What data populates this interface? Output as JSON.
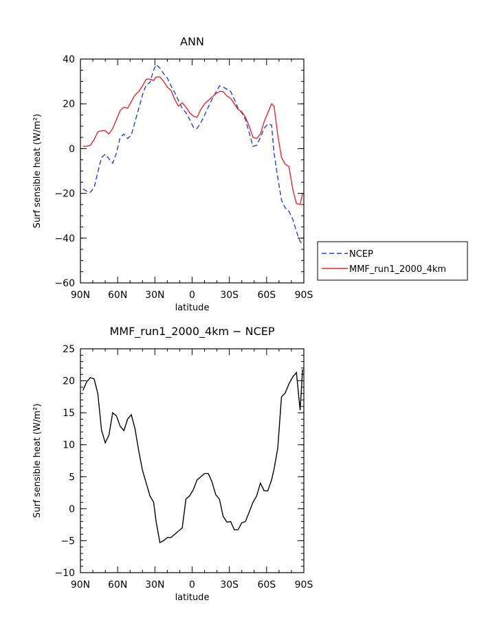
{
  "chart_data": [
    {
      "type": "line",
      "title": "ANN",
      "xlabel": "latitude",
      "ylabel": "Surf sensible heat (W/m²)",
      "xlim": [
        90,
        -90
      ],
      "ylim": [
        -60,
        40
      ],
      "x_ticks": [
        {
          "value": 90,
          "label": "90N"
        },
        {
          "value": 60,
          "label": "60N"
        },
        {
          "value": 30,
          "label": "30N"
        },
        {
          "value": 0,
          "label": "0"
        },
        {
          "value": -30,
          "label": "30S"
        },
        {
          "value": -60,
          "label": "60S"
        },
        {
          "value": -90,
          "label": "90S"
        }
      ],
      "y_ticks": [
        40,
        20,
        0,
        -20,
        -40,
        -60
      ],
      "y_tick_labels": [
        "40",
        "20",
        "0",
        "−20",
        "−40",
        "−60"
      ],
      "legend": {
        "placement": "right-of-plot"
      },
      "series": [
        {
          "name": "NCEP",
          "color": "#1f3fd8",
          "dashed": true,
          "x": [
            88,
            85,
            82,
            79,
            76,
            73,
            70,
            67,
            64,
            61,
            58,
            55,
            52,
            49,
            46,
            43,
            40,
            37,
            34,
            31,
            29,
            26,
            23,
            20,
            17,
            14,
            11,
            8,
            5,
            2,
            -1,
            -4,
            -7,
            -10,
            -13,
            -16,
            -19,
            -22,
            -25,
            -28,
            -31,
            -34,
            -37,
            -40,
            -43,
            -46,
            -49,
            -52,
            -55,
            -58,
            -61,
            -64,
            -66,
            -69,
            -72,
            -75,
            -78,
            -81,
            -84,
            -87,
            -89
          ],
          "y": [
            -18,
            -19,
            -19.5,
            -17.5,
            -10.5,
            -4,
            -2.5,
            -4.5,
            -6.5,
            -2,
            5,
            6.5,
            4.5,
            6,
            12,
            18,
            24,
            28.5,
            29.5,
            35,
            37.5,
            36,
            33.5,
            31.5,
            28,
            25,
            21.5,
            18,
            16,
            13,
            9.5,
            9,
            11.5,
            15,
            18.5,
            22,
            25,
            28,
            27.5,
            26.5,
            25.5,
            22,
            18,
            16,
            13,
            7,
            1,
            1.5,
            5,
            9,
            11,
            10.5,
            -2,
            -13,
            -23,
            -26.5,
            -28,
            -31.5,
            -37,
            -41.5,
            -42.5
          ]
        },
        {
          "name": "MMF_run1_2000_4km",
          "color": "#e8252a",
          "dashed": false,
          "x": [
            88,
            85,
            82,
            79,
            76,
            73,
            70,
            67,
            64,
            61,
            58,
            55,
            52,
            49,
            46,
            43,
            40,
            37,
            34,
            31,
            29,
            26,
            23,
            20,
            17,
            14,
            11,
            8,
            5,
            2,
            -1,
            -4,
            -7,
            -10,
            -13,
            -16,
            -19,
            -22,
            -25,
            -28,
            -31,
            -34,
            -37,
            -40,
            -43,
            -46,
            -49,
            -52,
            -55,
            -58,
            -61,
            -64,
            -66,
            -69,
            -72,
            -75,
            -78,
            -81,
            -84,
            -87,
            -89
          ],
          "y": [
            1,
            1,
            1.5,
            4,
            7.5,
            8,
            8,
            6.5,
            9,
            13,
            17,
            18.5,
            18,
            21,
            24,
            25.5,
            28,
            31,
            31,
            30.5,
            32,
            32,
            30,
            27.5,
            26,
            22,
            19,
            20.5,
            18.5,
            16,
            14.5,
            14,
            17.5,
            20,
            21.5,
            23,
            24.5,
            25.5,
            25.5,
            23.5,
            22.5,
            20,
            17.5,
            16.5,
            14,
            10,
            5,
            4.5,
            6.5,
            12,
            16,
            20,
            19,
            6,
            -4,
            -7,
            -8,
            -18,
            -24.5,
            -25,
            -20
          ]
        }
      ]
    },
    {
      "type": "line",
      "title": "MMF_run1_2000_4km − NCEP",
      "xlabel": "latitude",
      "ylabel": "Surf sensible heat (W/m²)",
      "xlim": [
        90,
        -90
      ],
      "ylim": [
        -10,
        25
      ],
      "x_ticks": [
        {
          "value": 90,
          "label": "90N"
        },
        {
          "value": 60,
          "label": "60N"
        },
        {
          "value": 30,
          "label": "30N"
        },
        {
          "value": 0,
          "label": "0"
        },
        {
          "value": -30,
          "label": "30S"
        },
        {
          "value": -60,
          "label": "60S"
        },
        {
          "value": -90,
          "label": "90S"
        }
      ],
      "y_ticks": [
        25,
        20,
        15,
        10,
        5,
        0,
        -5,
        -10
      ],
      "y_tick_labels": [
        "25",
        "20",
        "15",
        "10",
        "5",
        "0",
        "−5",
        "−10"
      ],
      "series": [
        {
          "color": "#000000",
          "dashed": false,
          "x": [
            88,
            85,
            82,
            79,
            76,
            73,
            70,
            67,
            64,
            61,
            58,
            55,
            52,
            49,
            46,
            43,
            40,
            37,
            34,
            31,
            29,
            26,
            23,
            20,
            17,
            14,
            11,
            8,
            5,
            2,
            -1,
            -4,
            -7,
            -10,
            -13,
            -16,
            -19,
            -22,
            -25,
            -28,
            -31,
            -34,
            -37,
            -40,
            -43,
            -46,
            -49,
            -52,
            -55,
            -58,
            -61,
            -64,
            -66,
            -69,
            -72,
            -75,
            -78,
            -81,
            -84,
            -87,
            -89
          ],
          "y": [
            18.5,
            19.8,
            20.5,
            20.3,
            18,
            12.3,
            10.3,
            11.5,
            15,
            14.5,
            12.9,
            12.2,
            14,
            14.7,
            12.5,
            9,
            6,
            4,
            2,
            1,
            -2,
            -5.3,
            -5,
            -4.5,
            -4.5,
            -4,
            -3.5,
            -3,
            1.5,
            2,
            3,
            4.5,
            5,
            5.5,
            5.5,
            4.2,
            2.2,
            1.5,
            -1.2,
            -2.1,
            -2,
            -3.3,
            -3.3,
            -2.2,
            -2,
            -0.5,
            1,
            2,
            4,
            2.8,
            2.8,
            4.5,
            6.2,
            9.5,
            17.5,
            18.1,
            19.5,
            20.6,
            21.3,
            15.4,
            21.8
          ]
        }
      ]
    }
  ]
}
